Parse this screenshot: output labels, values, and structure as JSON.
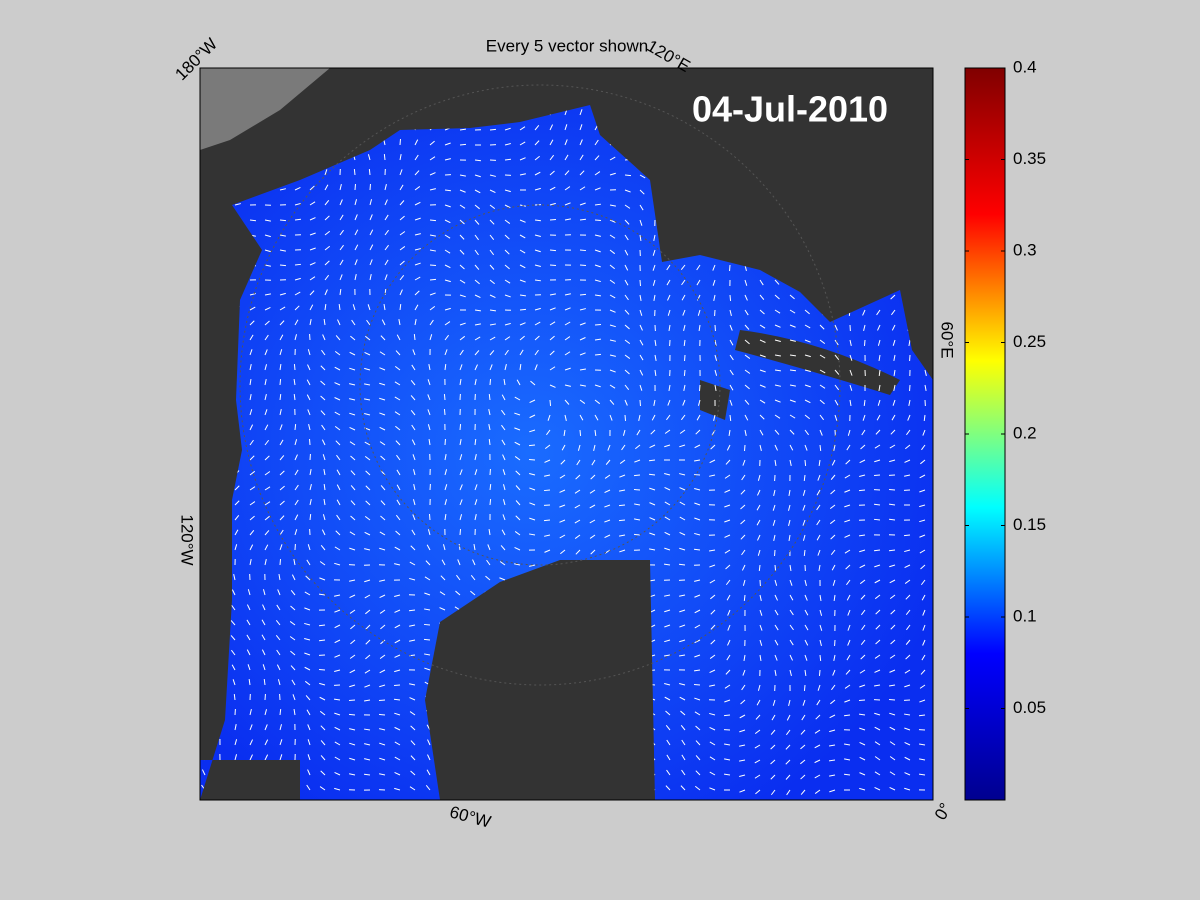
{
  "title": "Every 5 vector shown",
  "date": "04-Jul-2010",
  "longitude_labels": [
    "180°W",
    "120°E",
    "60°E",
    "0°",
    "60°W",
    "120°W"
  ],
  "colorbar": {
    "lim": [
      0,
      0.4
    ],
    "ticks": [
      0.05,
      0.1,
      0.15,
      0.2,
      0.25,
      0.3,
      0.35,
      0.4
    ],
    "colormap": [
      "#00008f",
      "#0000ff",
      "#00ffff",
      "#ffff00",
      "#ff0000",
      "#800000"
    ]
  }
}
